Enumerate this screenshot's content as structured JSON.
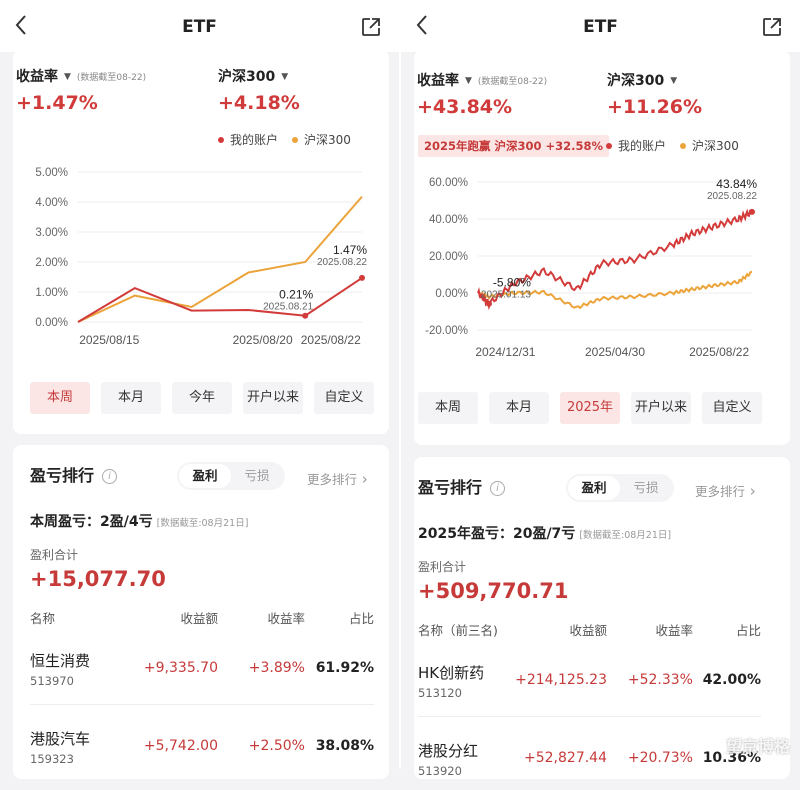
{
  "panels": [
    {
      "nav": {
        "title": "ETF"
      },
      "metrics": {
        "return_label": "收益率",
        "return_asof": "(数据截至08-22)",
        "return_value": "+1.47%",
        "bench_label": "沪深300",
        "bench_value": "+4.18%"
      },
      "legend": {
        "mine": "我的账户",
        "bench": "沪深300"
      },
      "beat_badge": "",
      "chart_data": {
        "type": "line",
        "title": "",
        "ytick_labels": [
          "5.00%",
          "4.00%",
          "3.00%",
          "2.00%",
          "1.00%",
          "0.00%"
        ],
        "ylim": [
          -0.2,
          5.0
        ],
        "xtick_labels": [
          "2025/08/15",
          "2025/08/20",
          "2025/08/22"
        ],
        "x": [
          "2025/08/15",
          "2025/08/18",
          "2025/08/19",
          "2025/08/20",
          "2025/08/21",
          "2025/08/22"
        ],
        "series": [
          {
            "name": "我的账户",
            "color": "#d33b3b",
            "values": [
              0.0,
              1.13,
              0.38,
              0.4,
              0.21,
              1.47
            ]
          },
          {
            "name": "沪深300",
            "color": "#eba33a",
            "values": [
              0.0,
              0.88,
              0.5,
              1.65,
              2.0,
              4.18
            ]
          }
        ],
        "annotations": [
          {
            "value": "1.47%",
            "date": "2025.08.22"
          },
          {
            "value": "0.21%",
            "date": "2025.08.21"
          }
        ],
        "grid": "horizontal"
      },
      "tabs": [
        {
          "label": "本周",
          "active": true
        },
        {
          "label": "本月",
          "active": false
        },
        {
          "label": "今年",
          "active": false
        },
        {
          "label": "开户以来",
          "active": false
        },
        {
          "label": "自定义",
          "active": false
        }
      ],
      "ranking": {
        "title": "盈亏排行",
        "seg_on": "盈利",
        "seg_off": "亏损",
        "more": "更多排行",
        "summary": "本周盈亏：2盈/4亏",
        "summary_asof": "[数据截至:08月21日]",
        "total_label": "盈利合计",
        "total_value": "+15,077.70",
        "headers": {
          "name": "名称",
          "amount": "收益额",
          "rate": "收益率",
          "share": "占比"
        },
        "rows": [
          {
            "name": "恒生消费",
            "code": "513970",
            "amount": "+9,335.70",
            "rate": "+3.89%",
            "share": "61.92%"
          },
          {
            "name": "港股汽车",
            "code": "159323",
            "amount": "+5,742.00",
            "rate": "+2.50%",
            "share": "38.08%"
          }
        ]
      }
    },
    {
      "nav": {
        "title": "ETF"
      },
      "metrics": {
        "return_label": "收益率",
        "return_asof": "(数据截至08-22)",
        "return_value": "+43.84%",
        "bench_label": "沪深300",
        "bench_value": "+11.26%"
      },
      "legend": {
        "mine": "我的账户",
        "bench": "沪深300"
      },
      "beat_badge": "2025年跑赢 沪深300 +32.58%",
      "chart_data": {
        "type": "line",
        "title": "",
        "ytick_labels": [
          "60.00%",
          "40.00%",
          "20.00%",
          "0.00%",
          "-20.00%"
        ],
        "ylim": [
          -20,
          60
        ],
        "xtick_labels": [
          "2024/12/31",
          "2025/04/30",
          "2025/08/22"
        ],
        "x": [
          "2024/12/31",
          "2025/01/13",
          "2025/02/10",
          "2025/03/10",
          "2025/04/07",
          "2025/04/30",
          "2025/05/30",
          "2025/06/30",
          "2025/07/15",
          "2025/07/31",
          "2025/08/15",
          "2025/08/22"
        ],
        "series": [
          {
            "name": "我的账户",
            "color": "#d33b3b",
            "values": [
              0.0,
              -5.8,
              5.0,
              12.0,
              2.0,
              16.0,
              18.0,
              26.0,
              32.0,
              36.0,
              40.0,
              43.84
            ]
          },
          {
            "name": "沪深300",
            "color": "#eba33a",
            "values": [
              0.0,
              -2.0,
              0.0,
              0.5,
              -8.0,
              -3.0,
              -2.0,
              0.0,
              2.0,
              4.0,
              6.0,
              11.26
            ]
          }
        ],
        "annotations": [
          {
            "value": "43.84%",
            "date": "2025.08.22"
          },
          {
            "value": "-5.80%",
            "date": "2025.01.13"
          }
        ],
        "grid": "horizontal"
      },
      "tabs": [
        {
          "label": "本周",
          "active": false
        },
        {
          "label": "本月",
          "active": false
        },
        {
          "label": "2025年",
          "active": true
        },
        {
          "label": "开户以来",
          "active": false
        },
        {
          "label": "自定义",
          "active": false
        }
      ],
      "ranking": {
        "title": "盈亏排行",
        "seg_on": "盈利",
        "seg_off": "亏损",
        "more": "更多排行",
        "summary": "2025年盈亏：20盈/7亏",
        "summary_asof": "[数据截至:08月21日]",
        "total_label": "盈利合计",
        "total_value": "+509,770.71",
        "headers": {
          "name": "名称（前三名)",
          "amount": "收益额",
          "rate": "收益率",
          "share": "占比"
        },
        "rows": [
          {
            "name": "HK创新药",
            "code": "513120",
            "amount": "+214,125.23",
            "rate": "+52.33%",
            "share": "42.00%"
          },
          {
            "name": "港股分红",
            "code": "513920",
            "amount": "+52,827.44",
            "rate": "+20.73%",
            "share": "10.36%"
          }
        ]
      },
      "watermark": "望京博格"
    }
  ]
}
